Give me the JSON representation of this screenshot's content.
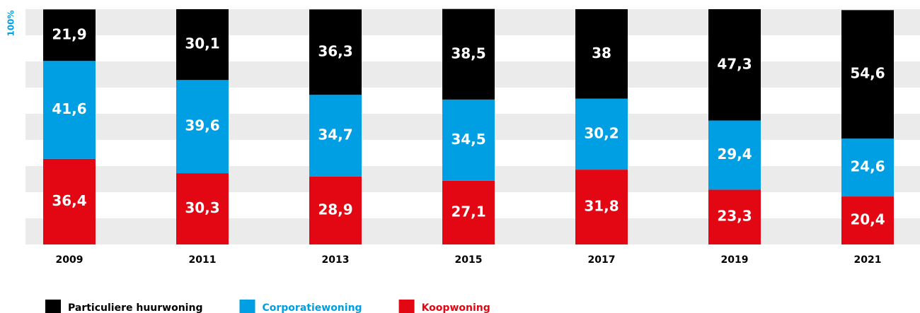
{
  "chart_data": {
    "type": "stacked_bar",
    "categories": [
      "2009",
      "2011",
      "2013",
      "2015",
      "2017",
      "2019",
      "2021"
    ],
    "series": [
      {
        "name": "Particuliere huurwoning",
        "color": "#000000",
        "values": [
          21.9,
          30.1,
          36.3,
          38.5,
          38,
          47.3,
          54.6
        ],
        "value_labels": [
          "21,9",
          "30,1",
          "36,3",
          "38,5",
          "38",
          "47,3",
          "54,6"
        ]
      },
      {
        "name": "Corporatiewoning",
        "color": "#009fe3",
        "values": [
          41.6,
          39.6,
          34.7,
          34.5,
          30.2,
          29.4,
          24.6
        ],
        "value_labels": [
          "41,6",
          "39,6",
          "34,7",
          "34,5",
          "30,2",
          "29,4",
          "24,6"
        ]
      },
      {
        "name": "Koopwoning",
        "color": "#e30613",
        "values": [
          36.4,
          30.3,
          28.9,
          27.1,
          31.8,
          23.3,
          20.4
        ],
        "value_labels": [
          "36,4",
          "30,3",
          "28,9",
          "27,1",
          "31,8",
          "23,3",
          "20,4"
        ]
      }
    ],
    "ylim": [
      0,
      100
    ],
    "yticks": [
      {
        "value": 100,
        "label": "100%"
      }
    ]
  }
}
